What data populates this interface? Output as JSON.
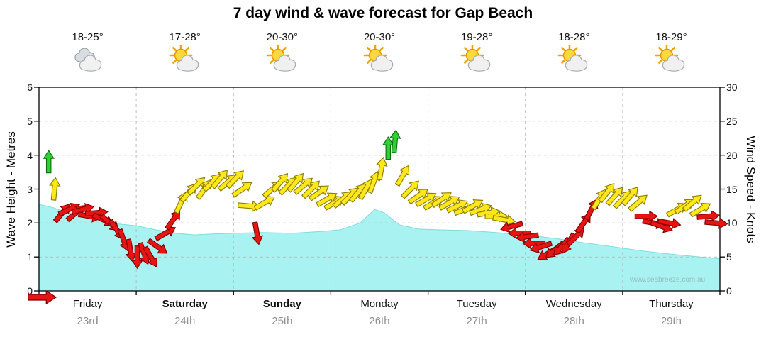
{
  "title": "7 day wind & wave forecast for Gap Beach",
  "watermark": "www.seabreeze.com.au",
  "days": [
    {
      "name": "Friday",
      "date": "23rd",
      "temp": "18-25°",
      "icon": "cloudy",
      "bold": false
    },
    {
      "name": "Saturday",
      "date": "24th",
      "temp": "17-28°",
      "icon": "partly-sunny",
      "bold": true
    },
    {
      "name": "Sunday",
      "date": "25th",
      "temp": "20-30°",
      "icon": "partly-sunny",
      "bold": true
    },
    {
      "name": "Monday",
      "date": "26th",
      "temp": "20-30°",
      "icon": "partly-sunny",
      "bold": false
    },
    {
      "name": "Tuesday",
      "date": "27th",
      "temp": "19-28°",
      "icon": "partly-sunny",
      "bold": false
    },
    {
      "name": "Wednesday",
      "date": "28th",
      "temp": "18-28°",
      "icon": "partly-sunny",
      "bold": false
    },
    {
      "name": "Thursday",
      "date": "29th",
      "temp": "18-29°",
      "icon": "partly-sunny",
      "bold": false
    }
  ],
  "left_axis": {
    "label": "Wave Height - Metres",
    "min": 0,
    "max": 6,
    "ticks": [
      0,
      1,
      2,
      3,
      4,
      5,
      6
    ]
  },
  "right_axis": {
    "label": "Wind Speed - Knots",
    "min": 0,
    "max": 30,
    "ticks": [
      0,
      5,
      10,
      15,
      20,
      25,
      30
    ]
  },
  "colors": {
    "red": "#e81414",
    "red_edge": "#7e0000",
    "yellow": "#ffe81a",
    "yellow_edge": "#8a7a00",
    "green": "#2fd034",
    "green_edge": "#0a6b0a",
    "wave_fill": "#a8f3f1",
    "wave_edge": "#7cdede",
    "grid": "#bbbbbb",
    "axis": "#000000"
  },
  "chart_data": {
    "type": "area+arrows",
    "title": "7 day wind & wave forecast for Gap Beach",
    "days_span": 7,
    "x_axis": {
      "unit": "days",
      "categories": [
        "Friday 23rd",
        "Saturday 24th",
        "Sunday 25th",
        "Monday 26th",
        "Tuesday 27th",
        "Wednesday 28th",
        "Thursday 29th"
      ]
    },
    "wave_axis": {
      "label": "Wave Height - Metres",
      "range": [
        0,
        6
      ]
    },
    "wind_axis": {
      "label": "Wind Speed - Knots",
      "range": [
        0,
        30
      ]
    },
    "wave_height_m": [
      [
        0,
        2.55
      ],
      [
        0.15,
        2.45
      ],
      [
        0.3,
        2.3
      ],
      [
        0.5,
        2.15
      ],
      [
        0.7,
        2.0
      ],
      [
        0.9,
        1.95
      ],
      [
        1.0,
        1.92
      ],
      [
        1.2,
        1.8
      ],
      [
        1.4,
        1.7
      ],
      [
        1.6,
        1.65
      ],
      [
        1.8,
        1.68
      ],
      [
        2.0,
        1.7
      ],
      [
        2.3,
        1.72
      ],
      [
        2.6,
        1.7
      ],
      [
        2.9,
        1.75
      ],
      [
        3.1,
        1.8
      ],
      [
        3.3,
        2.0
      ],
      [
        3.45,
        2.4
      ],
      [
        3.55,
        2.3
      ],
      [
        3.7,
        1.95
      ],
      [
        3.9,
        1.82
      ],
      [
        4.1,
        1.8
      ],
      [
        4.4,
        1.78
      ],
      [
        4.7,
        1.72
      ],
      [
        5.0,
        1.65
      ],
      [
        5.3,
        1.55
      ],
      [
        5.6,
        1.42
      ],
      [
        5.9,
        1.3
      ],
      [
        6.2,
        1.18
      ],
      [
        6.5,
        1.08
      ],
      [
        6.8,
        1.0
      ],
      [
        7.0,
        0.95
      ]
    ],
    "wind_knots": [
      [
        0.1,
        19,
        "green",
        0
      ],
      [
        0.16,
        15,
        "yellow",
        5
      ],
      [
        0.24,
        11.5,
        "red",
        40
      ],
      [
        0.31,
        12,
        "red",
        65
      ],
      [
        0.38,
        11.5,
        "red",
        50
      ],
      [
        0.45,
        12,
        "red",
        75
      ],
      [
        0.52,
        11,
        "red",
        100
      ],
      [
        0.59,
        11.5,
        "red",
        85
      ],
      [
        0.66,
        10.5,
        "red",
        115
      ],
      [
        0.73,
        10,
        "red",
        130
      ],
      [
        0.8,
        9,
        "red",
        145
      ],
      [
        0.87,
        7.5,
        "red",
        160
      ],
      [
        0.94,
        6,
        "red",
        170
      ],
      [
        1.01,
        5,
        "red",
        180
      ],
      [
        1.08,
        5.5,
        "red",
        160
      ],
      [
        1.15,
        5,
        "red",
        150
      ],
      [
        1.22,
        6.5,
        "red",
        125
      ],
      [
        1.3,
        8.5,
        "red",
        60
      ],
      [
        1.38,
        10.5,
        "red",
        35
      ],
      [
        1.46,
        13,
        "yellow",
        25
      ],
      [
        1.54,
        14.5,
        "yellow",
        40
      ],
      [
        1.62,
        15.5,
        "yellow",
        45
      ],
      [
        1.7,
        15,
        "yellow",
        35
      ],
      [
        1.78,
        16,
        "yellow",
        45
      ],
      [
        1.86,
        16.5,
        "yellow",
        40
      ],
      [
        1.94,
        16,
        "yellow",
        50
      ],
      [
        2.02,
        16.5,
        "yellow",
        45
      ],
      [
        2.09,
        15,
        "yellow",
        55
      ],
      [
        2.16,
        12.5,
        "yellow",
        95
      ],
      [
        2.24,
        8.5,
        "red",
        170
      ],
      [
        2.32,
        13,
        "yellow",
        60
      ],
      [
        2.4,
        15,
        "yellow",
        50
      ],
      [
        2.48,
        16,
        "yellow",
        40
      ],
      [
        2.56,
        15.5,
        "yellow",
        45
      ],
      [
        2.64,
        16,
        "yellow",
        40
      ],
      [
        2.72,
        15.5,
        "yellow",
        50
      ],
      [
        2.8,
        15,
        "yellow",
        45
      ],
      [
        2.88,
        14.5,
        "yellow",
        55
      ],
      [
        2.96,
        13.5,
        "yellow",
        60
      ],
      [
        3.04,
        13,
        "yellow",
        60
      ],
      [
        3.12,
        13.5,
        "yellow",
        50
      ],
      [
        3.2,
        14,
        "yellow",
        45
      ],
      [
        3.28,
        14.5,
        "yellow",
        40
      ],
      [
        3.36,
        15,
        "yellow",
        30
      ],
      [
        3.44,
        16,
        "yellow",
        20
      ],
      [
        3.52,
        18,
        "yellow",
        10
      ],
      [
        3.59,
        21,
        "green",
        0
      ],
      [
        3.66,
        22,
        "green",
        5
      ],
      [
        3.74,
        17,
        "yellow",
        30
      ],
      [
        3.82,
        15,
        "yellow",
        45
      ],
      [
        3.9,
        14,
        "yellow",
        55
      ],
      [
        3.98,
        13.5,
        "yellow",
        60
      ],
      [
        4.06,
        13,
        "yellow",
        60
      ],
      [
        4.14,
        13.5,
        "yellow",
        55
      ],
      [
        4.22,
        13,
        "yellow",
        60
      ],
      [
        4.3,
        12.5,
        "yellow",
        65
      ],
      [
        4.38,
        12,
        "yellow",
        70
      ],
      [
        4.46,
        12.5,
        "yellow",
        60
      ],
      [
        4.54,
        12,
        "yellow",
        70
      ],
      [
        4.62,
        11.5,
        "yellow",
        80
      ],
      [
        4.7,
        11,
        "yellow",
        90
      ],
      [
        4.78,
        10.5,
        "yellow",
        100
      ],
      [
        4.86,
        9.5,
        "red",
        255
      ],
      [
        4.94,
        8.5,
        "red",
        270
      ],
      [
        5.02,
        8,
        "red",
        262
      ],
      [
        5.09,
        7,
        "red",
        270
      ],
      [
        5.16,
        6.5,
        "red",
        252
      ],
      [
        5.23,
        5.5,
        "red",
        240
      ],
      [
        5.3,
        6,
        "red",
        230
      ],
      [
        5.37,
        6.5,
        "red",
        222
      ],
      [
        5.44,
        7,
        "red",
        210
      ],
      [
        5.52,
        8,
        "red",
        45
      ],
      [
        5.6,
        10,
        "red",
        35
      ],
      [
        5.68,
        12,
        "red",
        28
      ],
      [
        5.76,
        13.5,
        "yellow",
        32
      ],
      [
        5.84,
        14.5,
        "yellow",
        38
      ],
      [
        5.92,
        14,
        "yellow",
        42
      ],
      [
        6.0,
        13.5,
        "yellow",
        45
      ],
      [
        6.08,
        14,
        "yellow",
        40
      ],
      [
        6.16,
        13,
        "yellow",
        50
      ],
      [
        6.24,
        11,
        "red",
        90
      ],
      [
        6.32,
        10,
        "red",
        100
      ],
      [
        6.4,
        9.5,
        "red",
        110
      ],
      [
        6.48,
        10,
        "red",
        100
      ],
      [
        6.56,
        12,
        "yellow",
        60
      ],
      [
        6.64,
        12.5,
        "yellow",
        55
      ],
      [
        6.72,
        13,
        "yellow",
        50
      ],
      [
        6.8,
        12,
        "yellow",
        60
      ],
      [
        6.88,
        11,
        "red",
        85
      ],
      [
        6.96,
        10,
        "red",
        95
      ]
    ]
  }
}
